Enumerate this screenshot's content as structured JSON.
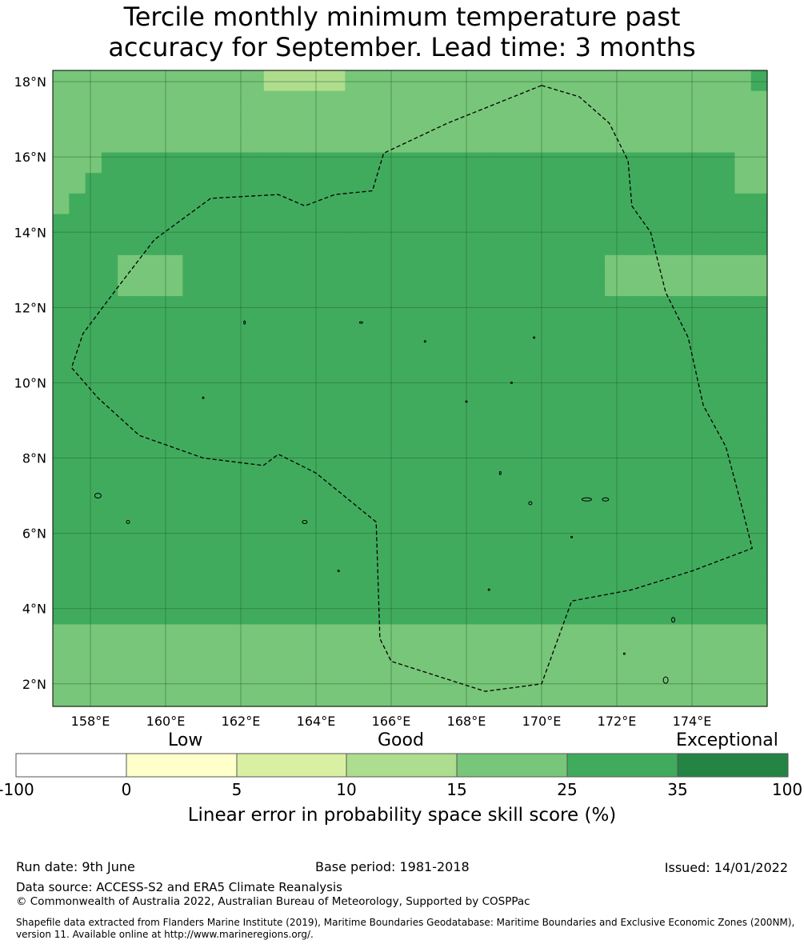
{
  "title": {
    "line1": "Tercile monthly minimum temperature past",
    "line2": "accuracy for September. Lead time: 3 months"
  },
  "map": {
    "lon_labels": [
      "158°E",
      "160°E",
      "162°E",
      "164°E",
      "166°E",
      "168°E",
      "170°E",
      "172°E",
      "174°E"
    ],
    "lat_labels": [
      "18°N",
      "16°N",
      "14°N",
      "12°N",
      "10°N",
      "8°N",
      "6°N",
      "4°N",
      "2°N"
    ],
    "lon_range": [
      157.0,
      176.0
    ],
    "lat_range": [
      1.4,
      18.3
    ],
    "boundary_style": "dashed",
    "skill_colors": {
      "c1": "#aedd8c",
      "c2": "#78c679",
      "c3": "#41ab5d",
      "c4": "#238443"
    }
  },
  "colorbar": {
    "category_labels": {
      "low": "Low",
      "good": "Good",
      "exceptional": "Exceptional"
    },
    "ticks": [
      "-100",
      "0",
      "5",
      "10",
      "15",
      "25",
      "35",
      "100"
    ],
    "colors": [
      "#ffffff",
      "#ffffcc",
      "#d9f0a3",
      "#addd8e",
      "#78c679",
      "#41ab5d",
      "#238443"
    ],
    "axis_title": "Linear error in probability space skill score (%)"
  },
  "footer": {
    "run_date": "Run date: 9th June",
    "base_period": "Base period: 1981-2018",
    "issued": "Issued: 14/01/2022",
    "data_source": "Data source: ACCESS-S2 and ERA5 Climate Reanalysis",
    "copyright": "© Commonwealth of Australia 2022, Australian Bureau of Meteorology, Supported by COSPPac",
    "shapefile_line1": "Shapefile data extracted from Flanders Marine Institute (2019), Maritime Boundaries Geodatabase: Maritime Boundaries and Exclusive Economic Zones (200NM),",
    "shapefile_line2": "version 11. Available online at http://www.marineregions.org/."
  }
}
